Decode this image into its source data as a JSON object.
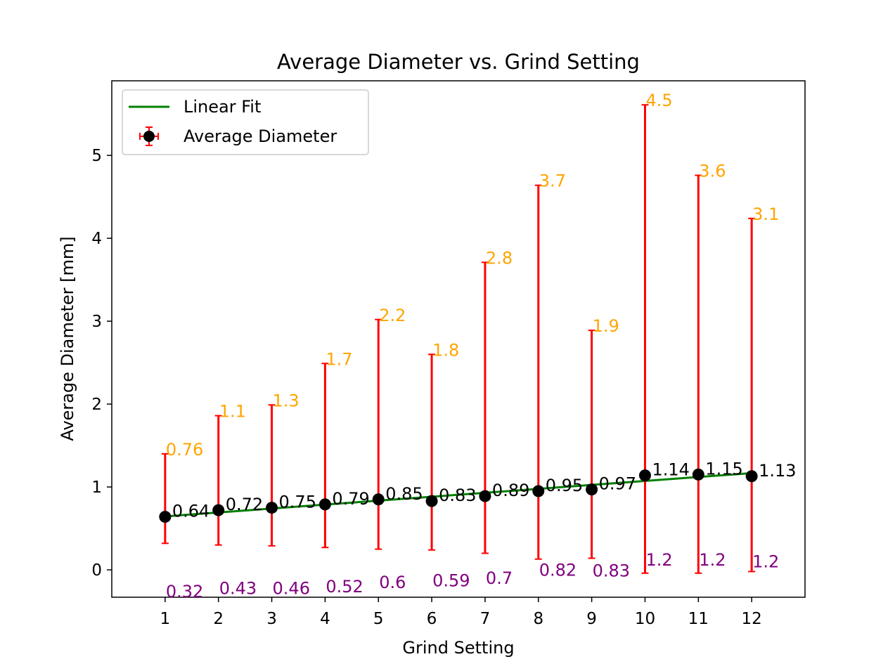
{
  "chart_data": {
    "type": "scatter",
    "title": "Average Diameter vs. Grind Setting",
    "xlabel": "Grind Setting",
    "ylabel": "Average Diameter [mm]",
    "xlim": [
      0,
      13
    ],
    "ylim": [
      -0.33,
      5.9
    ],
    "xticks": [
      "1",
      "2",
      "3",
      "4",
      "5",
      "6",
      "7",
      "8",
      "9",
      "10",
      "11",
      "12"
    ],
    "yticks": [
      "0",
      "1",
      "2",
      "3",
      "4",
      "5"
    ],
    "grid": false,
    "legend_position": "upper-left",
    "x": [
      1,
      2,
      3,
      4,
      5,
      6,
      7,
      8,
      9,
      10,
      11,
      12
    ],
    "series": [
      {
        "name": "Average Diameter",
        "kind": "errorbar",
        "marker_color": "#000000",
        "errorbar_color": "#ff0000",
        "values": [
          0.64,
          0.72,
          0.75,
          0.79,
          0.85,
          0.83,
          0.89,
          0.95,
          0.97,
          1.14,
          1.15,
          1.13
        ],
        "labels": [
          "0.64",
          "0.72",
          "0.75",
          "0.79",
          "0.85",
          "0.83",
          "0.89",
          "0.95",
          "0.97",
          "1.14",
          "1.15",
          "1.13"
        ],
        "upper": [
          1.4,
          1.86,
          1.99,
          2.49,
          3.02,
          2.6,
          3.71,
          4.64,
          2.89,
          5.61,
          4.76,
          4.24
        ],
        "lower": [
          0.32,
          0.3,
          0.29,
          0.27,
          0.25,
          0.24,
          0.2,
          0.13,
          0.14,
          -0.04,
          -0.04,
          -0.02
        ],
        "upper_labels": [
          "0.76",
          "1.1",
          "1.3",
          "1.7",
          "2.2",
          "1.8",
          "2.8",
          "3.7",
          "1.9",
          "4.5",
          "3.6",
          "3.1"
        ],
        "lower_labels": [
          "0.32",
          "0.43",
          "0.46",
          "0.52",
          "0.6",
          "0.59",
          "0.7",
          "0.82",
          "0.83",
          "1.2",
          "1.2",
          "1.2"
        ],
        "lower_label_y": [
          -0.33,
          -0.29,
          -0.29,
          -0.27,
          -0.22,
          -0.2,
          -0.17,
          -0.07,
          -0.08,
          0.05,
          0.05,
          0.03
        ]
      },
      {
        "name": "Linear Fit",
        "kind": "line",
        "color": "#008000",
        "values": [
          0.645,
          0.6925,
          0.74,
          0.7875,
          0.835,
          0.8825,
          0.93,
          0.9775,
          1.025,
          1.0725,
          1.12,
          1.1675
        ]
      }
    ],
    "colors": {
      "upper_label": "#ffa500",
      "lower_label": "#800080"
    }
  }
}
